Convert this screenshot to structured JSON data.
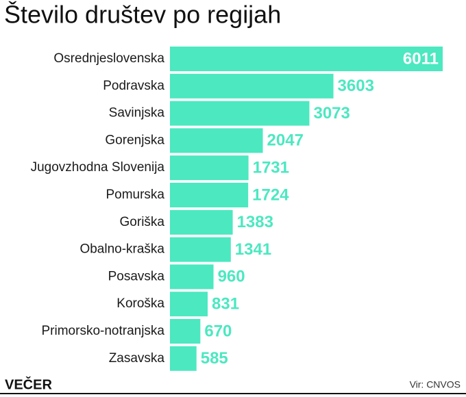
{
  "chart_data": {
    "type": "bar",
    "orientation": "horizontal",
    "title": "Število društev po regijah",
    "categories": [
      "Osrednjeslovenska",
      "Podravska",
      "Savinjska",
      "Gorenjska",
      "Jugovzhodna Slovenija",
      "Pomurska",
      "Goriška",
      "Obalno-kraška",
      "Posavska",
      "Koroška",
      "Primorsko-notranjska",
      "Zasavska"
    ],
    "values": [
      6011,
      3603,
      3073,
      2047,
      1731,
      1724,
      1383,
      1341,
      960,
      831,
      670,
      585
    ],
    "color": "#4ce8c0",
    "logo": "VEČER",
    "source": "Vir: CNVOS"
  }
}
